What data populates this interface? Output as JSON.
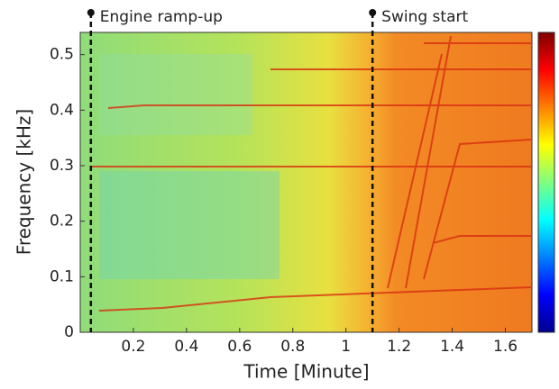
{
  "chart_data": {
    "type": "spectrogram",
    "xlabel": "Time [Minute]",
    "ylabel": "Frequency [kHz]",
    "xlim": [
      0,
      1.7
    ],
    "xticks": [
      0.2,
      0.4,
      0.6,
      0.8,
      1,
      1.2,
      1.4,
      1.6
    ],
    "ylim": [
      0,
      0.54
    ],
    "yticks": [
      0,
      0.1,
      0.2,
      0.3,
      0.4,
      0.5
    ],
    "colormap": "jet",
    "colorbar": true,
    "annotations": [
      {
        "x": 0.04,
        "label": "Engine ramp-up"
      },
      {
        "x": 1.1,
        "label": "Swing start"
      }
    ]
  }
}
